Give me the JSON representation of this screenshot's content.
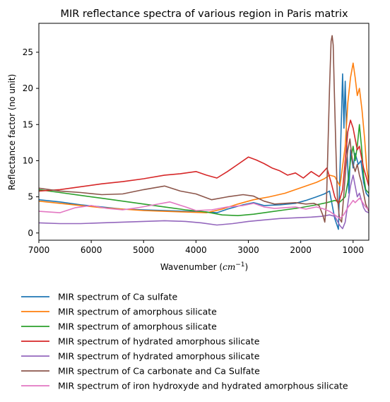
{
  "chart_data": {
    "type": "line",
    "title": "MIR reflectance spectra of various region in Paris matrix",
    "xlabel_text": "Wavenumber (",
    "xlabel_unit": "cm",
    "xlabel_exp": "−1",
    "xlabel_close": ")",
    "ylabel": "Reflectance factor (no unit)",
    "xlim": [
      7000,
      700
    ],
    "x_inverted": true,
    "ylim": [
      -1,
      29
    ],
    "xticks": [
      7000,
      6000,
      5000,
      4000,
      3000,
      2000,
      1000
    ],
    "yticks": [
      0,
      5,
      10,
      15,
      20,
      25
    ],
    "grid": false,
    "legend_position": "below-chart",
    "series": [
      {
        "name": "MIR spectrum of Ca sulfate",
        "color": "#1f77b4",
        "points": [
          [
            7000,
            4.6
          ],
          [
            6600,
            4.3
          ],
          [
            6200,
            3.9
          ],
          [
            5800,
            3.6
          ],
          [
            5400,
            3.3
          ],
          [
            5000,
            3.2
          ],
          [
            4600,
            3.1
          ],
          [
            4200,
            3.0
          ],
          [
            3800,
            2.9
          ],
          [
            3600,
            2.8
          ],
          [
            3400,
            3.3
          ],
          [
            3100,
            3.9
          ],
          [
            2900,
            4.2
          ],
          [
            2700,
            3.8
          ],
          [
            2400,
            3.9
          ],
          [
            2100,
            4.1
          ],
          [
            1900,
            4.5
          ],
          [
            1700,
            5.0
          ],
          [
            1550,
            5.4
          ],
          [
            1450,
            5.8
          ],
          [
            1350,
            2.0
          ],
          [
            1280,
            0.5
          ],
          [
            1230,
            14.0
          ],
          [
            1200,
            22.0
          ],
          [
            1175,
            14.5
          ],
          [
            1150,
            21.0
          ],
          [
            1120,
            12.0
          ],
          [
            1080,
            5.5
          ],
          [
            1050,
            11.5
          ],
          [
            1000,
            9.0
          ],
          [
            960,
            11.0
          ],
          [
            900,
            9.5
          ],
          [
            850,
            10.0
          ],
          [
            800,
            7.0
          ],
          [
            750,
            5.5
          ],
          [
            700,
            5.0
          ]
        ]
      },
      {
        "name": "MIR spectrum of amorphous silicate",
        "color": "#ff7f0e",
        "points": [
          [
            7000,
            4.4
          ],
          [
            6600,
            4.1
          ],
          [
            6200,
            3.8
          ],
          [
            5800,
            3.5
          ],
          [
            5400,
            3.3
          ],
          [
            5000,
            3.1
          ],
          [
            4600,
            3.0
          ],
          [
            4200,
            2.9
          ],
          [
            3800,
            2.8
          ],
          [
            3500,
            3.3
          ],
          [
            3200,
            4.0
          ],
          [
            2900,
            4.6
          ],
          [
            2600,
            5.0
          ],
          [
            2300,
            5.5
          ],
          [
            2100,
            6.0
          ],
          [
            1900,
            6.5
          ],
          [
            1700,
            7.0
          ],
          [
            1550,
            7.5
          ],
          [
            1450,
            8.0
          ],
          [
            1350,
            7.8
          ],
          [
            1250,
            6.5
          ],
          [
            1150,
            12.0
          ],
          [
            1100,
            18.0
          ],
          [
            1050,
            21.5
          ],
          [
            1000,
            23.5
          ],
          [
            960,
            21.5
          ],
          [
            920,
            19.0
          ],
          [
            880,
            20.0
          ],
          [
            830,
            17.0
          ],
          [
            780,
            13.0
          ],
          [
            740,
            9.0
          ],
          [
            700,
            7.0
          ]
        ]
      },
      {
        "name": "MIR spectrum of amorphous silicate",
        "color": "#2ca02c",
        "points": [
          [
            7000,
            6.0
          ],
          [
            6600,
            5.6
          ],
          [
            6200,
            5.2
          ],
          [
            5800,
            4.8
          ],
          [
            5400,
            4.4
          ],
          [
            5000,
            4.0
          ],
          [
            4600,
            3.6
          ],
          [
            4200,
            3.2
          ],
          [
            3800,
            2.9
          ],
          [
            3500,
            2.5
          ],
          [
            3200,
            2.4
          ],
          [
            2900,
            2.6
          ],
          [
            2600,
            2.9
          ],
          [
            2300,
            3.2
          ],
          [
            2000,
            3.5
          ],
          [
            1700,
            3.9
          ],
          [
            1500,
            4.2
          ],
          [
            1350,
            4.5
          ],
          [
            1250,
            4.3
          ],
          [
            1150,
            5.0
          ],
          [
            1100,
            7.0
          ],
          [
            1050,
            10.0
          ],
          [
            1000,
            12.0
          ],
          [
            960,
            10.0
          ],
          [
            920,
            12.0
          ],
          [
            880,
            15.0
          ],
          [
            840,
            12.0
          ],
          [
            800,
            8.0
          ],
          [
            760,
            6.0
          ],
          [
            700,
            5.5
          ]
        ]
      },
      {
        "name": "MIR spectrum of hydrated amorphous silicate",
        "color": "#d62728",
        "points": [
          [
            7000,
            5.8
          ],
          [
            6600,
            6.0
          ],
          [
            6200,
            6.4
          ],
          [
            5800,
            6.8
          ],
          [
            5400,
            7.1
          ],
          [
            5000,
            7.5
          ],
          [
            4600,
            8.0
          ],
          [
            4300,
            8.2
          ],
          [
            4000,
            8.5
          ],
          [
            3800,
            8.0
          ],
          [
            3600,
            7.6
          ],
          [
            3400,
            8.5
          ],
          [
            3200,
            9.5
          ],
          [
            3000,
            10.5
          ],
          [
            2850,
            10.1
          ],
          [
            2700,
            9.6
          ],
          [
            2550,
            9.0
          ],
          [
            2400,
            8.6
          ],
          [
            2250,
            8.0
          ],
          [
            2100,
            8.3
          ],
          [
            1950,
            7.6
          ],
          [
            1800,
            8.5
          ],
          [
            1650,
            7.8
          ],
          [
            1500,
            9.0
          ],
          [
            1420,
            7.0
          ],
          [
            1350,
            5.0
          ],
          [
            1280,
            4.0
          ],
          [
            1200,
            6.0
          ],
          [
            1150,
            10.0
          ],
          [
            1100,
            14.0
          ],
          [
            1050,
            15.6
          ],
          [
            1000,
            14.5
          ],
          [
            960,
            13.0
          ],
          [
            920,
            11.5
          ],
          [
            880,
            12.0
          ],
          [
            840,
            10.5
          ],
          [
            800,
            9.0
          ],
          [
            760,
            8.0
          ],
          [
            700,
            6.5
          ]
        ]
      },
      {
        "name": "MIR spectrum of hydrated amorphous silicate",
        "color": "#9467bd",
        "points": [
          [
            7000,
            1.4
          ],
          [
            6600,
            1.3
          ],
          [
            6200,
            1.3
          ],
          [
            5800,
            1.4
          ],
          [
            5400,
            1.5
          ],
          [
            5000,
            1.6
          ],
          [
            4600,
            1.7
          ],
          [
            4200,
            1.6
          ],
          [
            3900,
            1.4
          ],
          [
            3600,
            1.1
          ],
          [
            3300,
            1.3
          ],
          [
            3000,
            1.6
          ],
          [
            2700,
            1.8
          ],
          [
            2400,
            2.0
          ],
          [
            2100,
            2.1
          ],
          [
            1800,
            2.2
          ],
          [
            1600,
            2.3
          ],
          [
            1450,
            2.5
          ],
          [
            1350,
            2.3
          ],
          [
            1250,
            1.0
          ],
          [
            1200,
            0.6
          ],
          [
            1150,
            1.5
          ],
          [
            1100,
            4.0
          ],
          [
            1050,
            6.5
          ],
          [
            1000,
            8.0
          ],
          [
            960,
            6.5
          ],
          [
            920,
            5.0
          ],
          [
            880,
            5.5
          ],
          [
            840,
            4.5
          ],
          [
            800,
            3.5
          ],
          [
            760,
            3.0
          ],
          [
            700,
            2.8
          ]
        ]
      },
      {
        "name": "MIR spectrum of Ca carbonate and Ca Sulfate",
        "color": "#8c564b",
        "points": [
          [
            7000,
            6.2
          ],
          [
            6600,
            5.8
          ],
          [
            6200,
            5.6
          ],
          [
            5800,
            5.3
          ],
          [
            5400,
            5.4
          ],
          [
            5000,
            6.0
          ],
          [
            4600,
            6.5
          ],
          [
            4300,
            5.8
          ],
          [
            4000,
            5.4
          ],
          [
            3700,
            4.6
          ],
          [
            3400,
            5.0
          ],
          [
            3100,
            5.3
          ],
          [
            2900,
            5.1
          ],
          [
            2700,
            4.4
          ],
          [
            2500,
            4.0
          ],
          [
            2300,
            4.1
          ],
          [
            2100,
            4.2
          ],
          [
            1900,
            4.0
          ],
          [
            1750,
            4.1
          ],
          [
            1650,
            3.8
          ],
          [
            1580,
            2.5
          ],
          [
            1540,
            1.5
          ],
          [
            1510,
            4.0
          ],
          [
            1480,
            12.0
          ],
          [
            1450,
            20.0
          ],
          [
            1420,
            26.5
          ],
          [
            1400,
            27.3
          ],
          [
            1380,
            26.0
          ],
          [
            1360,
            20.0
          ],
          [
            1330,
            12.0
          ],
          [
            1300,
            5.0
          ],
          [
            1260,
            2.0
          ],
          [
            1220,
            1.5
          ],
          [
            1180,
            5.0
          ],
          [
            1140,
            9.0
          ],
          [
            1100,
            11.5
          ],
          [
            1060,
            13.0
          ],
          [
            1030,
            11.0
          ],
          [
            1000,
            9.5
          ],
          [
            960,
            8.5
          ],
          [
            920,
            9.5
          ],
          [
            880,
            8.0
          ],
          [
            840,
            7.0
          ],
          [
            800,
            5.5
          ],
          [
            760,
            4.0
          ],
          [
            700,
            3.0
          ]
        ]
      },
      {
        "name": "MIR spectrum of iron hydroxyde and hydrated amorphous silicate",
        "color": "#e377c2",
        "points": [
          [
            7000,
            3.0
          ],
          [
            6600,
            2.8
          ],
          [
            6300,
            3.5
          ],
          [
            6000,
            3.8
          ],
          [
            5700,
            3.4
          ],
          [
            5400,
            3.2
          ],
          [
            5100,
            3.5
          ],
          [
            4800,
            3.9
          ],
          [
            4500,
            4.3
          ],
          [
            4200,
            3.6
          ],
          [
            4000,
            3.1
          ],
          [
            3700,
            3.2
          ],
          [
            3400,
            3.6
          ],
          [
            3100,
            3.8
          ],
          [
            2900,
            4.1
          ],
          [
            2700,
            3.6
          ],
          [
            2500,
            3.4
          ],
          [
            2300,
            3.5
          ],
          [
            2100,
            3.6
          ],
          [
            1900,
            3.3
          ],
          [
            1700,
            3.6
          ],
          [
            1550,
            3.3
          ],
          [
            1450,
            3.0
          ],
          [
            1350,
            2.5
          ],
          [
            1250,
            2.0
          ],
          [
            1180,
            2.5
          ],
          [
            1100,
            3.5
          ],
          [
            1050,
            4.0
          ],
          [
            1000,
            4.5
          ],
          [
            960,
            4.2
          ],
          [
            920,
            4.5
          ],
          [
            880,
            4.8
          ],
          [
            840,
            4.5
          ],
          [
            800,
            4.0
          ],
          [
            760,
            3.6
          ],
          [
            700,
            3.2
          ]
        ]
      }
    ]
  }
}
